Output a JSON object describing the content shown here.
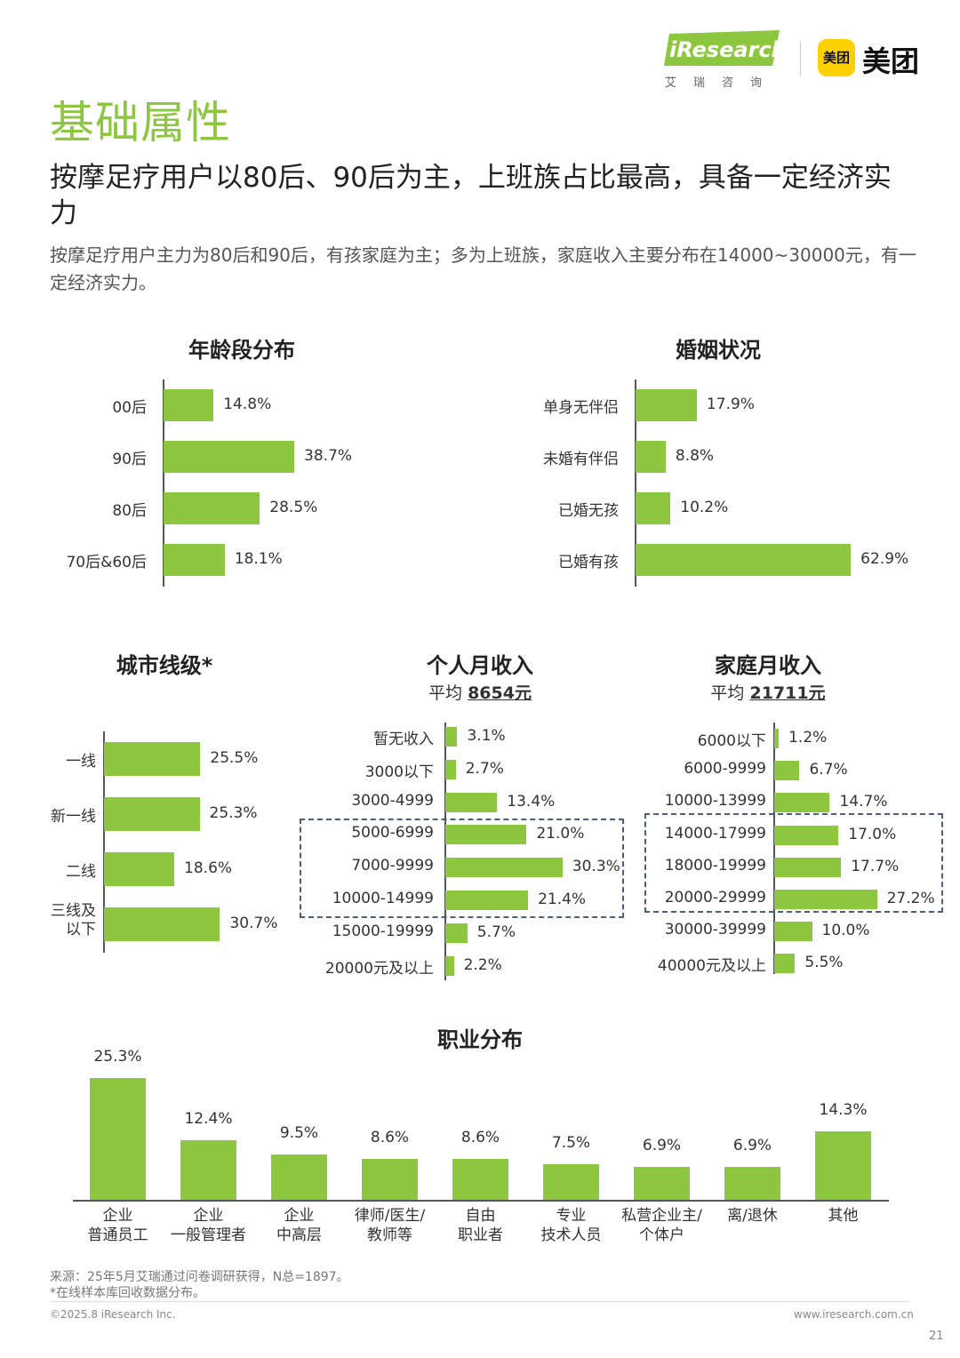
{
  "header": {
    "logo_ir": "iResearch",
    "logo_ir_sub": "艾瑞咨询",
    "logo_mt_badge": "美团",
    "logo_mt_text": "美团"
  },
  "page_title": "基础属性",
  "headline": "按摩足疗用户以80后、90后为主，上班族占比最高，具备一定经济实力",
  "subline": "按摩足疗用户主力为80后和90后，有孩家庭为主；多为上班族，家庭收入主要分布在14000~30000元，有一定经济实力。",
  "colors": {
    "bar": "#8dc63f",
    "title_green": "#8dc63f",
    "dash": "#4a5f80"
  },
  "chart_data": [
    {
      "id": "age",
      "type": "bar",
      "orientation": "horizontal",
      "title": "年龄段分布",
      "categories": [
        "00后",
        "90后",
        "80后",
        "70后&60后"
      ],
      "values": [
        14.8,
        38.7,
        28.5,
        18.1
      ],
      "value_labels": [
        "14.8%",
        "38.7%",
        "28.5%",
        "18.1%"
      ],
      "unit": "%"
    },
    {
      "id": "marriage",
      "type": "bar",
      "orientation": "horizontal",
      "title": "婚姻状况",
      "categories": [
        "单身无伴侣",
        "未婚有伴侣",
        "已婚无孩",
        "已婚有孩"
      ],
      "values": [
        17.9,
        8.8,
        10.2,
        62.9
      ],
      "value_labels": [
        "17.9%",
        "8.8%",
        "10.2%",
        "62.9%"
      ],
      "unit": "%"
    },
    {
      "id": "city",
      "type": "bar",
      "orientation": "horizontal",
      "title": "城市线级*",
      "categories": [
        "一线",
        "新一线",
        "二线",
        "三线及以下"
      ],
      "value_labels": [
        "25.5%",
        "25.3%",
        "18.6%",
        "30.7%"
      ],
      "values": [
        25.5,
        25.3,
        18.6,
        30.7
      ],
      "unit": "%"
    },
    {
      "id": "personal_income",
      "type": "bar",
      "orientation": "horizontal",
      "title": "个人月收入",
      "subtitle_prefix": "平均",
      "subtitle_value": "8654元",
      "categories": [
        "暂无收入",
        "3000以下",
        "3000-4999",
        "5000-6999",
        "7000-9999",
        "10000-14999",
        "15000-19999",
        "20000元及以上"
      ],
      "values": [
        3.1,
        2.7,
        13.4,
        21.0,
        30.3,
        21.4,
        5.7,
        2.2
      ],
      "value_labels": [
        "3.1%",
        "2.7%",
        "13.4%",
        "21.0%",
        "30.3%",
        "21.4%",
        "5.7%",
        "2.2%"
      ],
      "highlight_range": [
        3,
        5
      ],
      "unit": "%"
    },
    {
      "id": "household_income",
      "type": "bar",
      "orientation": "horizontal",
      "title": "家庭月收入",
      "subtitle_prefix": "平均",
      "subtitle_value": "21711元",
      "categories": [
        "6000以下",
        "6000-9999",
        "10000-13999",
        "14000-17999",
        "18000-19999",
        "20000-29999",
        "30000-39999",
        "40000元及以上"
      ],
      "values": [
        1.2,
        6.7,
        14.7,
        17.0,
        17.7,
        27.2,
        10.0,
        5.5
      ],
      "value_labels": [
        "1.2%",
        "6.7%",
        "14.7%",
        "17.0%",
        "17.7%",
        "27.2%",
        "10.0%",
        "5.5%"
      ],
      "highlight_range": [
        3,
        5
      ],
      "unit": "%"
    },
    {
      "id": "occupation",
      "type": "bar",
      "orientation": "vertical",
      "title": "职业分布",
      "categories": [
        "企业普通员工",
        "企业一般管理者",
        "企业中高层",
        "律师/医生/教师等",
        "自由职业者",
        "专业技术人员",
        "私营企业主/个体户",
        "离/退休",
        "其他"
      ],
      "category_lines": [
        [
          "企业",
          "普通员工"
        ],
        [
          "企业",
          "一般管理者"
        ],
        [
          "企业",
          "中高层"
        ],
        [
          "律师/医生/",
          "教师等"
        ],
        [
          "自由",
          "职业者"
        ],
        [
          "专业",
          "技术人员"
        ],
        [
          "私营企业主/",
          "个体户"
        ],
        [
          "离/退休"
        ],
        [
          "其他"
        ]
      ],
      "values": [
        25.3,
        12.4,
        9.5,
        8.6,
        8.6,
        7.5,
        6.9,
        6.9,
        14.3
      ],
      "value_labels": [
        "25.3%",
        "12.4%",
        "9.5%",
        "8.6%",
        "8.6%",
        "7.5%",
        "6.9%",
        "6.9%",
        "14.3%"
      ],
      "unit": "%"
    }
  ],
  "footer": {
    "source": "来源：25年5月艾瑞通过问卷调研获得，N总=1897。",
    "note": "*在线样本库回收数据分布。",
    "copyright": "©2025.8 iResearch Inc.",
    "website": "www.iresearch.com.cn",
    "page_number": "21"
  }
}
